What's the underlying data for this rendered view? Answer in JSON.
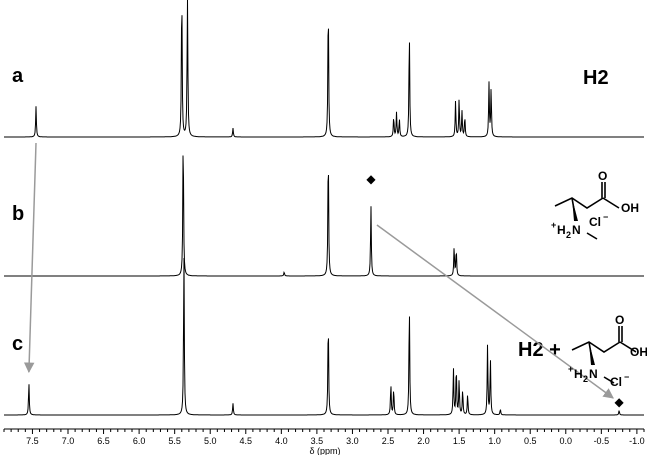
{
  "chart_data": {
    "type": "line",
    "title": "",
    "xlabel": "δ (ppm)",
    "x_reversed": true,
    "xlim": [
      7.9,
      -1.1
    ],
    "x_ticks": [
      7.5,
      7.0,
      6.5,
      6.0,
      5.5,
      5.0,
      4.5,
      4.0,
      3.5,
      3.0,
      2.5,
      2.0,
      1.5,
      1.0,
      0.5,
      0.0,
      -0.5,
      -1.0
    ],
    "x_tick_labels": [
      "7.5",
      "7.0",
      "6.5",
      "6.0",
      "5.5",
      "5.0",
      "4.5",
      "4.0",
      "3.5",
      "3.0",
      "2.5",
      "2.0",
      "1.5",
      "1.0",
      "0.5",
      "0.0",
      "-0.5",
      "-1.0"
    ],
    "grid": false,
    "panels": [
      {
        "label": "a",
        "annotation": "H2",
        "peaks": [
          {
            "ppm": 7.45,
            "height": 0.24
          },
          {
            "ppm": 5.4,
            "height": 1.2
          },
          {
            "ppm": 5.32,
            "height": 1.2
          },
          {
            "ppm": 4.68,
            "height": 0.07
          },
          {
            "ppm": 3.34,
            "height": 1.1
          },
          {
            "ppm": 2.42,
            "height": 0.16
          },
          {
            "ppm": 2.38,
            "height": 0.19
          },
          {
            "ppm": 2.34,
            "height": 0.14
          },
          {
            "ppm": 2.2,
            "height": 0.85
          },
          {
            "ppm": 1.55,
            "height": 0.28
          },
          {
            "ppm": 1.5,
            "height": 0.3
          },
          {
            "ppm": 1.46,
            "height": 0.2
          },
          {
            "ppm": 1.42,
            "height": 0.16
          },
          {
            "ppm": 1.08,
            "height": 0.42
          },
          {
            "ppm": 1.05,
            "height": 0.38
          }
        ]
      },
      {
        "label": "b",
        "peaks": [
          {
            "ppm": 5.38,
            "height": 1.4
          },
          {
            "ppm": 3.96,
            "height": 0.04
          },
          {
            "ppm": 3.34,
            "height": 1.25
          },
          {
            "ppm": 2.74,
            "height": 0.68
          },
          {
            "ppm": 1.57,
            "height": 0.28
          },
          {
            "ppm": 1.54,
            "height": 0.26
          }
        ]
      },
      {
        "label": "c",
        "annotation": "H2 +",
        "peaks": [
          {
            "ppm": 7.55,
            "height": 0.28
          },
          {
            "ppm": 5.37,
            "height": 1.4
          },
          {
            "ppm": 4.68,
            "height": 0.1
          },
          {
            "ppm": 3.34,
            "height": 0.85
          },
          {
            "ppm": 2.46,
            "height": 0.27
          },
          {
            "ppm": 2.42,
            "height": 0.23
          },
          {
            "ppm": 2.2,
            "height": 0.97
          },
          {
            "ppm": 1.58,
            "height": 0.4
          },
          {
            "ppm": 1.54,
            "height": 0.42
          },
          {
            "ppm": 1.5,
            "height": 0.3
          },
          {
            "ppm": 1.45,
            "height": 0.22
          },
          {
            "ppm": 1.38,
            "height": 0.18
          },
          {
            "ppm": 1.1,
            "height": 0.6
          },
          {
            "ppm": 1.06,
            "height": 0.48
          },
          {
            "ppm": 0.92,
            "height": 0.05
          },
          {
            "ppm": -0.75,
            "height": 0.04
          }
        ]
      }
    ],
    "markers": [
      {
        "symbol": "◆",
        "panel": "b",
        "ppm": 2.74
      },
      {
        "symbol": "◆",
        "panel": "c",
        "ppm": -0.75
      }
    ],
    "arrows": [
      {
        "from": {
          "panel": "a",
          "ppm": 7.45
        },
        "to": {
          "panel": "c",
          "ppm": 7.55
        }
      },
      {
        "from": {
          "panel": "b",
          "ppm": 2.74
        },
        "to": {
          "panel": "c",
          "ppm": -0.75
        }
      }
    ]
  },
  "structure_labels": {
    "nh2": "H",
    "nh2_sub": "2",
    "n": "N",
    "plus": "+",
    "oh": "OH",
    "o": "O",
    "cl": "Cl",
    "cl_charge": "−"
  },
  "colors": {
    "trace": "#000000",
    "arrow": "#9a9a9a"
  }
}
